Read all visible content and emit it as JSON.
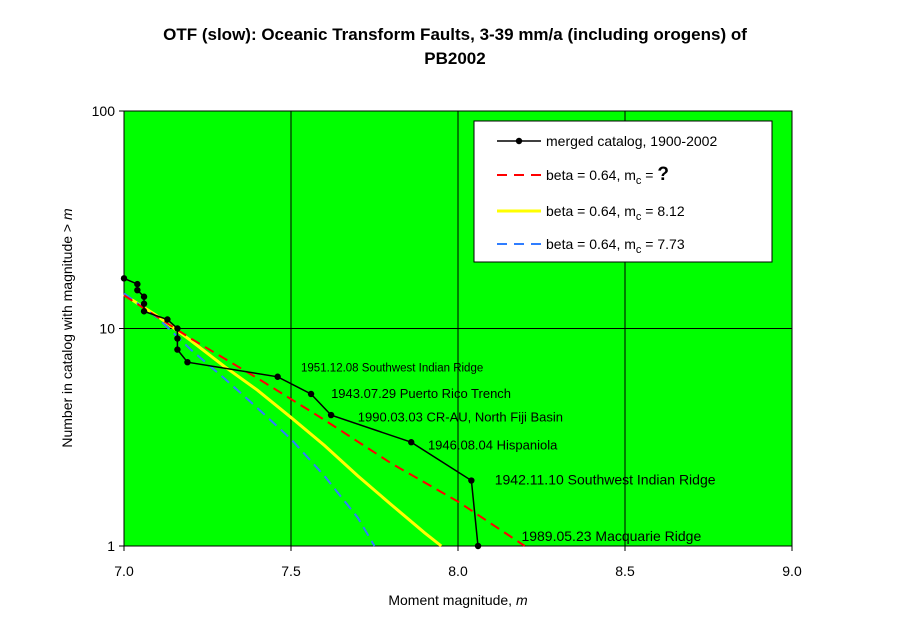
{
  "chart_data": {
    "type": "line",
    "title_line1": "OTF (slow): Oceanic Transform Faults, 3-39 mm/a (including orogens) of",
    "title_line2": "PB2002",
    "xlabel_prefix": "Moment magnitude, ",
    "xlabel_var": "m",
    "ylabel_prefix": "Number in catalog with magnitude  >  ",
    "ylabel_var": "m",
    "xlim": [
      7.0,
      9.0
    ],
    "ylim": [
      1,
      100
    ],
    "yscale": "log",
    "grid": true,
    "plot_background": "#00ff00",
    "x_ticks": [
      "7.0",
      "7.5",
      "8.0",
      "8.5",
      "9.0"
    ],
    "y_ticks": [
      "1",
      "10",
      "100"
    ],
    "legend_position": "top-right",
    "series": [
      {
        "name": "merged catalog, 1900-2002",
        "style": "line-markers",
        "color": "#000000",
        "points": [
          [
            7.0,
            17
          ],
          [
            7.04,
            16
          ],
          [
            7.04,
            15
          ],
          [
            7.06,
            14
          ],
          [
            7.06,
            13
          ],
          [
            7.06,
            12
          ],
          [
            7.13,
            11
          ],
          [
            7.16,
            10
          ],
          [
            7.16,
            9
          ],
          [
            7.16,
            8
          ],
          [
            7.19,
            7
          ],
          [
            7.46,
            6
          ],
          [
            7.56,
            5
          ],
          [
            7.62,
            4
          ],
          [
            7.86,
            3
          ],
          [
            8.04,
            2
          ],
          [
            8.06,
            1
          ]
        ]
      },
      {
        "name": "beta = 0.64, m",
        "sub": "c",
        "suffix": " = ",
        "suffix_big": "?",
        "style": "dashed",
        "color": "#ff0000",
        "points": [
          [
            7.0,
            14.2
          ],
          [
            7.2,
            9.0
          ],
          [
            7.4,
            5.9
          ],
          [
            7.6,
            3.8
          ],
          [
            7.8,
            2.4
          ],
          [
            8.0,
            1.6
          ],
          [
            8.2,
            1.0
          ]
        ]
      },
      {
        "name": "beta = 0.64, m",
        "sub": "c",
        "suffix": " = 8.12",
        "style": "solid",
        "color": "#ffff00",
        "points": [
          [
            7.0,
            14.3
          ],
          [
            7.1,
            11.4
          ],
          [
            7.2,
            8.8
          ],
          [
            7.3,
            6.7
          ],
          [
            7.4,
            5.2
          ],
          [
            7.5,
            3.9
          ],
          [
            7.6,
            2.9
          ],
          [
            7.7,
            2.1
          ],
          [
            7.8,
            1.55
          ],
          [
            7.9,
            1.15
          ],
          [
            7.95,
            1.0
          ]
        ]
      },
      {
        "name": "beta = 0.64, m",
        "sub": "c",
        "suffix": " = 7.73",
        "style": "dashed",
        "color": "#2f7dff",
        "points": [
          [
            7.0,
            14.5
          ],
          [
            7.1,
            11.2
          ],
          [
            7.2,
            8.0
          ],
          [
            7.3,
            5.9
          ],
          [
            7.4,
            4.3
          ],
          [
            7.5,
            3.1
          ],
          [
            7.6,
            2.1
          ],
          [
            7.7,
            1.35
          ],
          [
            7.75,
            1.0
          ]
        ]
      }
    ],
    "annotations": [
      {
        "text": "1951.12.08 Southwest Indian Ridge",
        "x": 7.53,
        "y": 6.6,
        "size": "small"
      },
      {
        "text": "1943.07.29 Puerto Rico Trench",
        "x": 7.62,
        "y": 5.0,
        "size": "medium"
      },
      {
        "text": "1990.03.03 CR-AU, North Fiji Basin",
        "x": 7.7,
        "y": 3.9,
        "size": "medium"
      },
      {
        "text": "1946.08.04 Hispaniola",
        "x": 7.91,
        "y": 2.9,
        "size": "medium"
      },
      {
        "text": "1942.11.10 Southwest Indian Ridge",
        "x": 8.11,
        "y": 2.0,
        "size": "large"
      },
      {
        "text": "1989.05.23 Macquarie Ridge",
        "x": 8.19,
        "y": 1.1,
        "size": "large"
      }
    ]
  }
}
